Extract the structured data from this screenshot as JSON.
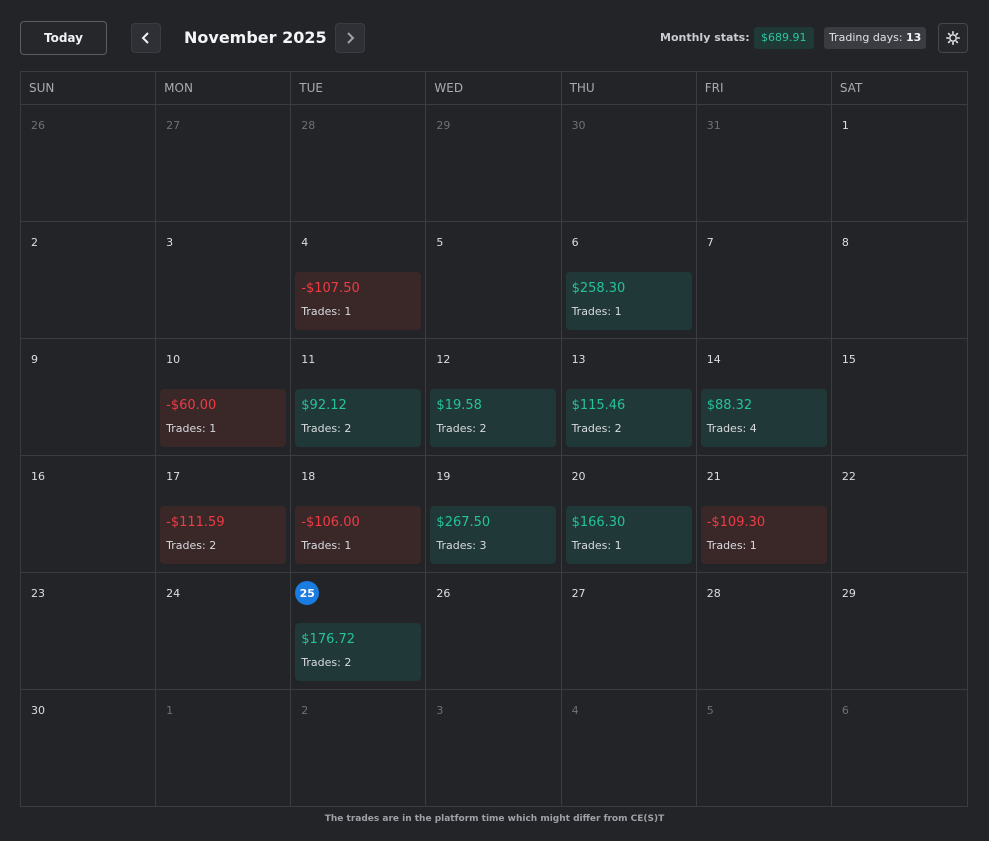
{
  "header": {
    "today_label": "Today",
    "month_title": "November 2025",
    "stats_label": "Monthly stats:",
    "stats_value": "$689.91",
    "trading_days_label": "Trading days:",
    "trading_days_value": "13"
  },
  "weekdays": [
    "SUN",
    "MON",
    "TUE",
    "WED",
    "THU",
    "FRI",
    "SAT"
  ],
  "weeks": [
    [
      {
        "day": "26",
        "other": true
      },
      {
        "day": "27",
        "other": true
      },
      {
        "day": "28",
        "other": true
      },
      {
        "day": "29",
        "other": true
      },
      {
        "day": "30",
        "other": true
      },
      {
        "day": "31",
        "other": true
      },
      {
        "day": "1"
      }
    ],
    [
      {
        "day": "2"
      },
      {
        "day": "3"
      },
      {
        "day": "4",
        "trade": {
          "amount": "-$107.50",
          "count": "Trades: 1",
          "type": "neg"
        }
      },
      {
        "day": "5"
      },
      {
        "day": "6",
        "trade": {
          "amount": "$258.30",
          "count": "Trades: 1",
          "type": "pos"
        }
      },
      {
        "day": "7"
      },
      {
        "day": "8"
      }
    ],
    [
      {
        "day": "9"
      },
      {
        "day": "10",
        "trade": {
          "amount": "-$60.00",
          "count": "Trades: 1",
          "type": "neg"
        }
      },
      {
        "day": "11",
        "trade": {
          "amount": "$92.12",
          "count": "Trades: 2",
          "type": "pos"
        }
      },
      {
        "day": "12",
        "trade": {
          "amount": "$19.58",
          "count": "Trades: 2",
          "type": "pos"
        }
      },
      {
        "day": "13",
        "trade": {
          "amount": "$115.46",
          "count": "Trades: 2",
          "type": "pos"
        }
      },
      {
        "day": "14",
        "trade": {
          "amount": "$88.32",
          "count": "Trades: 4",
          "type": "pos"
        }
      },
      {
        "day": "15"
      }
    ],
    [
      {
        "day": "16"
      },
      {
        "day": "17",
        "trade": {
          "amount": "-$111.59",
          "count": "Trades: 2",
          "type": "neg"
        }
      },
      {
        "day": "18",
        "trade": {
          "amount": "-$106.00",
          "count": "Trades: 1",
          "type": "neg"
        }
      },
      {
        "day": "19",
        "trade": {
          "amount": "$267.50",
          "count": "Trades: 3",
          "type": "pos"
        }
      },
      {
        "day": "20",
        "trade": {
          "amount": "$166.30",
          "count": "Trades: 1",
          "type": "pos"
        }
      },
      {
        "day": "21",
        "trade": {
          "amount": "-$109.30",
          "count": "Trades: 1",
          "type": "neg"
        }
      },
      {
        "day": "22"
      }
    ],
    [
      {
        "day": "23"
      },
      {
        "day": "24"
      },
      {
        "day": "25",
        "today": true,
        "trade": {
          "amount": "$176.72",
          "count": "Trades: 2",
          "type": "pos"
        }
      },
      {
        "day": "26"
      },
      {
        "day": "27"
      },
      {
        "day": "28"
      },
      {
        "day": "29"
      }
    ],
    [
      {
        "day": "30"
      },
      {
        "day": "1",
        "other": true
      },
      {
        "day": "2",
        "other": true
      },
      {
        "day": "3",
        "other": true
      },
      {
        "day": "4",
        "other": true
      },
      {
        "day": "5",
        "other": true
      },
      {
        "day": "6",
        "other": true
      }
    ]
  ],
  "footer": "The trades are in the platform time which might differ from CE(S)T",
  "colors": {
    "background": "#232427",
    "profit": "#25c29b",
    "loss": "#ef3b44",
    "today": "#1a7be0"
  },
  "icons": {
    "prev": "chevron-left-icon",
    "next": "chevron-right-icon",
    "settings": "gear-icon"
  }
}
